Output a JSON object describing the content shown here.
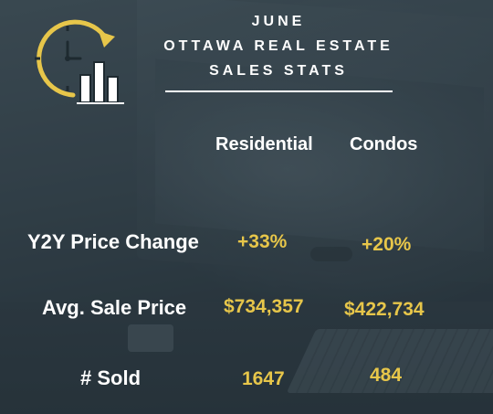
{
  "header": {
    "line1": "JUNE",
    "line2": "OTTAWA REAL ESTATE",
    "line3": "SALES STATS"
  },
  "columns": {
    "residential": "Residential",
    "condos": "Condos"
  },
  "rows": [
    {
      "label": "Y2Y Price Change",
      "residential": "+33%",
      "condos": "+20%"
    },
    {
      "label": "Avg. Sale Price",
      "residential": "$734,357",
      "condos": "$422,734"
    },
    {
      "label": "# Sold",
      "residential": "1647",
      "condos": "484"
    }
  ],
  "colors": {
    "accent": "#e7c64a",
    "text": "#ffffff",
    "background": "#3b4a52"
  },
  "icons": {
    "logo": "clock-with-bar-chart-icon"
  }
}
